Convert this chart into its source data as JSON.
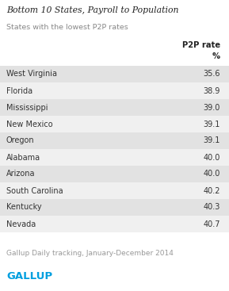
{
  "title": "Bottom 10 States, Payroll to Population",
  "subtitle": "States with the lowest P2P rates",
  "col_header": "P2P rate",
  "col_subheader": "%",
  "states": [
    "West Virginia",
    "Florida",
    "Mississippi",
    "New Mexico",
    "Oregon",
    "Alabama",
    "Arizona",
    "South Carolina",
    "Kentucky",
    "Nevada"
  ],
  "values": [
    35.6,
    38.9,
    39.0,
    39.1,
    39.1,
    40.0,
    40.0,
    40.2,
    40.3,
    40.7
  ],
  "footer": "Gallup Daily tracking, January-December 2014",
  "gallup_label": "GALLUP",
  "bg_color": "#ffffff",
  "row_shaded_color": "#e2e2e2",
  "row_light_color": "#f0f0f0",
  "title_color": "#222222",
  "subtitle_color": "#888888",
  "text_color": "#333333",
  "header_color": "#222222",
  "footer_color": "#999999",
  "gallup_color": "#009fdf",
  "fig_width": 2.89,
  "fig_height": 3.67,
  "dpi": 100
}
